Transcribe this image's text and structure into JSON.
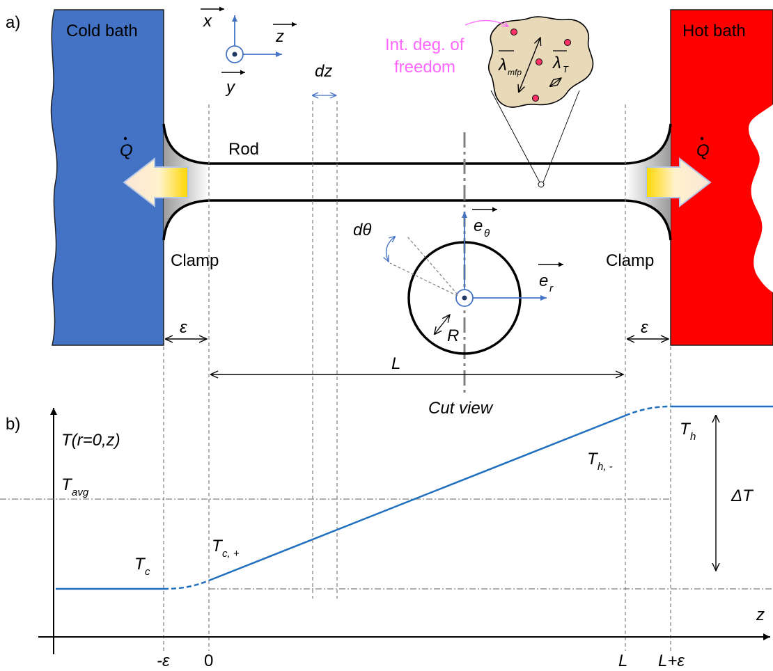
{
  "panel_a": {
    "tag": "a)",
    "cold_bath": "Cold bath",
    "hot_bath": "Hot bath",
    "heat_flow": "Q",
    "rod": "Rod",
    "clamp_left": "Clamp",
    "clamp_right": "Clamp",
    "axis_x": "x",
    "axis_y": "y",
    "axis_z": "z",
    "dz": "dz",
    "int_deg_line1": "Int. deg. of",
    "int_deg_line2": "freedom",
    "lambda": "λ",
    "mfp_sub": "mfp",
    "T_sub": "T",
    "d_theta": "dθ",
    "e_theta": "e",
    "theta_sub": "θ",
    "e_r": "e",
    "r_sub": "r",
    "R": "R",
    "epsilon_left": "ε",
    "epsilon_right": "ε",
    "L": "L",
    "cut_view": "Cut view"
  },
  "panel_b": {
    "tag": "b)",
    "y_label": "T(r=0,z)",
    "z_label": "z",
    "T_avg": "T",
    "avg_sub": "avg",
    "T_c": "T",
    "c_sub": "c",
    "T_c_plus": "T",
    "c_plus_sub": "c, +",
    "T_h_minus": "T",
    "h_minus_sub": "h, -",
    "T_h": "T",
    "h_sub": "h",
    "delta_T": "ΔT",
    "ticks": {
      "minus_eps": "-ε",
      "zero": "0",
      "L": "L",
      "L_plus_eps": "L+ε"
    }
  },
  "colors": {
    "cold": "#4472c4",
    "hot": "#ff0000",
    "curve": "#1f6fbf",
    "accent_blue": "#4472c4",
    "magenta": "#ff66ff",
    "particle": "#e8d9b8"
  }
}
